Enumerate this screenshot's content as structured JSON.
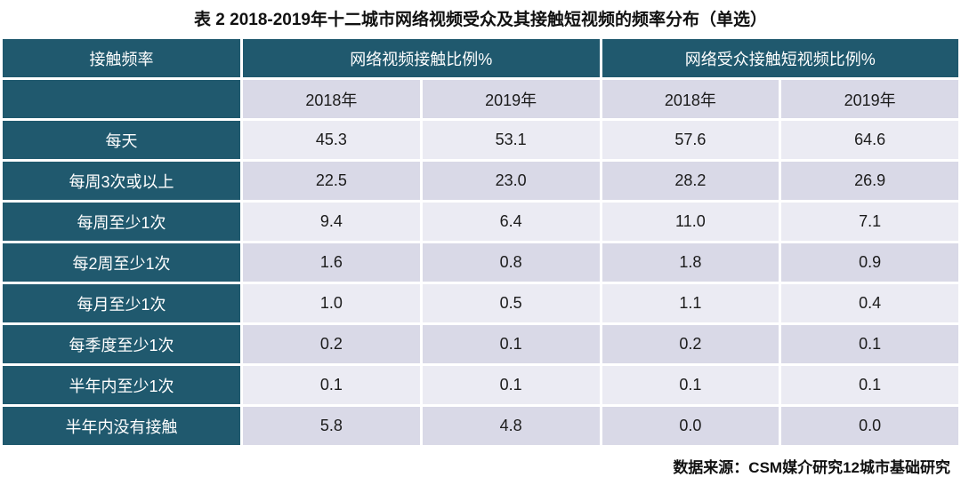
{
  "title": "表 2 2018-2019年十二城市网络视频受众及其接触短视频的频率分布（单选）",
  "footer": "数据来源：CSM媒介研究12城市基础研究",
  "colors": {
    "header_bg": "#20596E",
    "row_light": "#EBEBF3",
    "row_medium": "#D9D9E7"
  },
  "table": {
    "corner": "接触频率",
    "groups": [
      "网络视频接触比例%",
      "网络受众接触短视频比例%"
    ],
    "years": [
      "2018年",
      "2019年",
      "2018年",
      "2019年"
    ],
    "rows": [
      {
        "label": "每天",
        "values": [
          "45.3",
          "53.1",
          "57.6",
          "64.6"
        ]
      },
      {
        "label": "每周3次或以上",
        "values": [
          "22.5",
          "23.0",
          "28.2",
          "26.9"
        ]
      },
      {
        "label": "每周至少1次",
        "values": [
          "9.4",
          "6.4",
          "11.0",
          "7.1"
        ]
      },
      {
        "label": "每2周至少1次",
        "values": [
          "1.6",
          "0.8",
          "1.8",
          "0.9"
        ]
      },
      {
        "label": "每月至少1次",
        "values": [
          "1.0",
          "0.5",
          "1.1",
          "0.4"
        ]
      },
      {
        "label": "每季度至少1次",
        "values": [
          "0.2",
          "0.1",
          "0.2",
          "0.1"
        ]
      },
      {
        "label": "半年内至少1次",
        "values": [
          "0.1",
          "0.1",
          "0.1",
          "0.1"
        ]
      },
      {
        "label": "半年内没有接触",
        "values": [
          "5.8",
          "4.8",
          "0.0",
          "0.0"
        ]
      }
    ]
  },
  "chart_data": {
    "type": "table",
    "title": "表 2 2018-2019年十二城市网络视频受众及其接触短视频的频率分布（单选）",
    "column_groups": [
      "网络视频接触比例%",
      "网络受众接触短视频比例%"
    ],
    "columns": [
      "接触频率",
      "网络视频接触比例% 2018年",
      "网络视频接触比例% 2019年",
      "网络受众接触短视频比例% 2018年",
      "网络受众接触短视频比例% 2019年"
    ],
    "rows": [
      [
        "每天",
        45.3,
        53.1,
        57.6,
        64.6
      ],
      [
        "每周3次或以上",
        22.5,
        23.0,
        28.2,
        26.9
      ],
      [
        "每周至少1次",
        9.4,
        6.4,
        11.0,
        7.1
      ],
      [
        "每2周至少1次",
        1.6,
        0.8,
        1.8,
        0.9
      ],
      [
        "每月至少1次",
        1.0,
        0.5,
        1.1,
        0.4
      ],
      [
        "每季度至少1次",
        0.2,
        0.1,
        0.2,
        0.1
      ],
      [
        "半年内至少1次",
        0.1,
        0.1,
        0.1,
        0.1
      ],
      [
        "半年内没有接触",
        5.8,
        4.8,
        0.0,
        0.0
      ]
    ],
    "source": "数据来源：CSM媒介研究12城市基础研究"
  }
}
